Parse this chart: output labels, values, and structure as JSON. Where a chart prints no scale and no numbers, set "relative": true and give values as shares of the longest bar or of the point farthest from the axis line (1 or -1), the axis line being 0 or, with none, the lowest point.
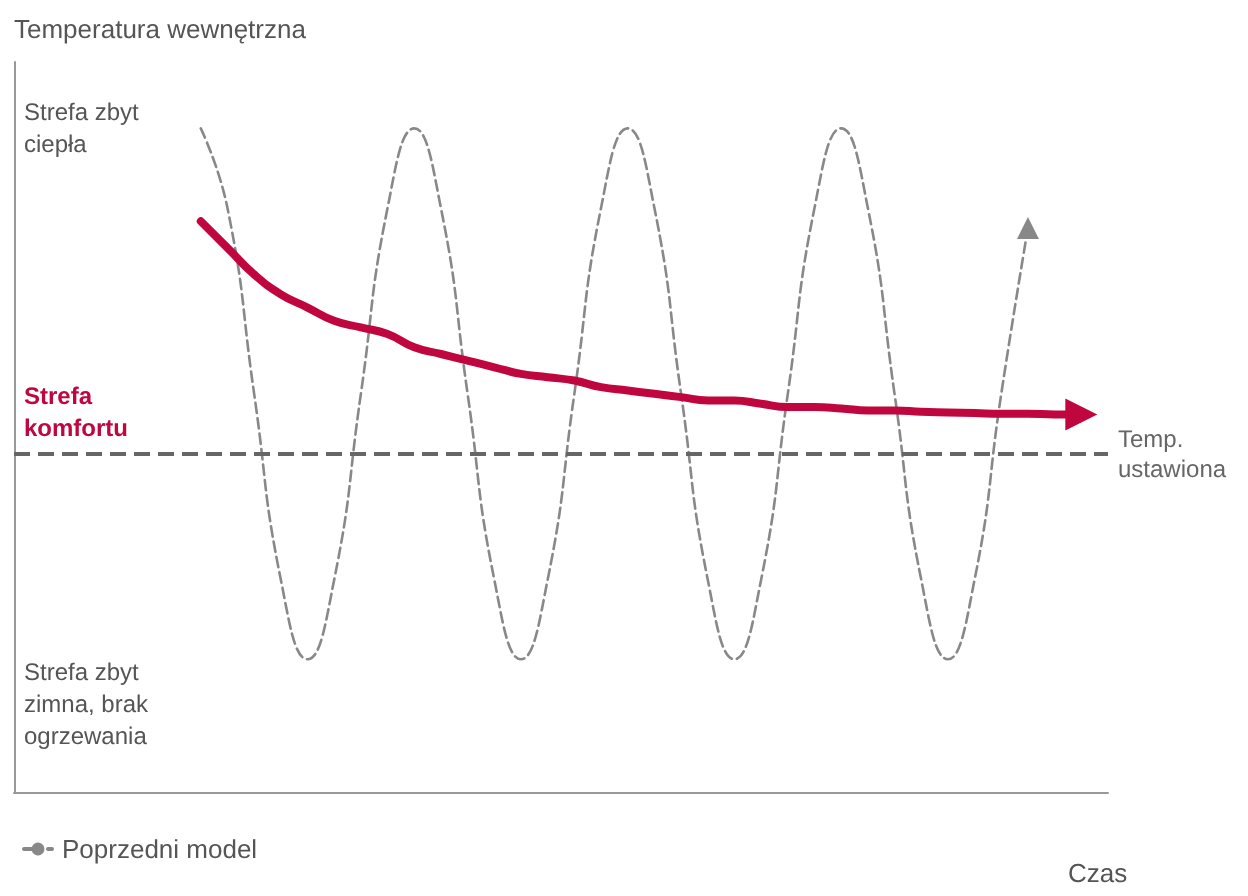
{
  "chart_data": {
    "type": "line",
    "relative": true,
    "ylabel": "Temperatura wewnętrzna",
    "xlabel": "Czas",
    "categories": [
      null,
      null,
      null,
      null,
      null,
      null,
      null,
      null,
      null,
      null,
      null,
      null,
      null,
      null,
      null,
      null,
      null,
      null,
      null,
      null,
      null,
      null,
      null,
      null,
      null,
      null,
      null,
      null,
      null,
      null,
      null,
      null,
      null,
      null,
      null,
      null,
      null,
      null,
      null,
      null,
      null,
      null
    ],
    "series": [
      {
        "name": "Poprzedni model",
        "color": "#888888",
        "line_style": "dashed",
        "values": [
          null,
          null,
          null,
          null,
          null,
          null,
          null,
          1,
          0.88,
          0.6,
          0.32,
          0.2,
          0.32,
          0.6,
          0.88,
          1,
          0.88,
          0.6,
          0.32,
          0.2,
          0.32,
          0.6,
          0.88,
          1,
          0.88,
          0.6,
          0.32,
          0.2,
          0.32,
          0.6,
          0.88,
          1,
          0.88,
          0.6,
          0.32,
          0.2,
          0.32,
          0.6,
          0.85,
          null,
          null,
          null
        ]
      },
      {
        "color": "#c0063f",
        "line_style": "solid",
        "values": [
          null,
          null,
          null,
          null,
          null,
          null,
          null,
          0.86,
          0.82,
          0.78,
          0.75,
          0.73,
          0.71,
          0.7,
          0.69,
          0.67,
          0.66,
          0.65,
          0.64,
          0.63,
          0.625,
          0.62,
          0.61,
          0.605,
          0.6,
          0.595,
          0.59,
          0.59,
          0.585,
          0.58,
          0.58,
          0.578,
          0.575,
          0.575,
          0.573,
          0.572,
          0.571,
          0.57,
          0.57,
          0.569,
          0.569,
          null
        ]
      }
    ],
    "ref_lines": [
      {
        "axis": "y",
        "value": 0.51,
        "label": "Temp. ustawiona",
        "color": "#666666",
        "line_style": "dashed"
      }
    ],
    "annotations": [
      "Strefa zbyt ciepła",
      "Strefa komfortu",
      "Strefa zbyt zimna, brak ogrzewania"
    ],
    "grid": false,
    "legend": "bottom left"
  }
}
